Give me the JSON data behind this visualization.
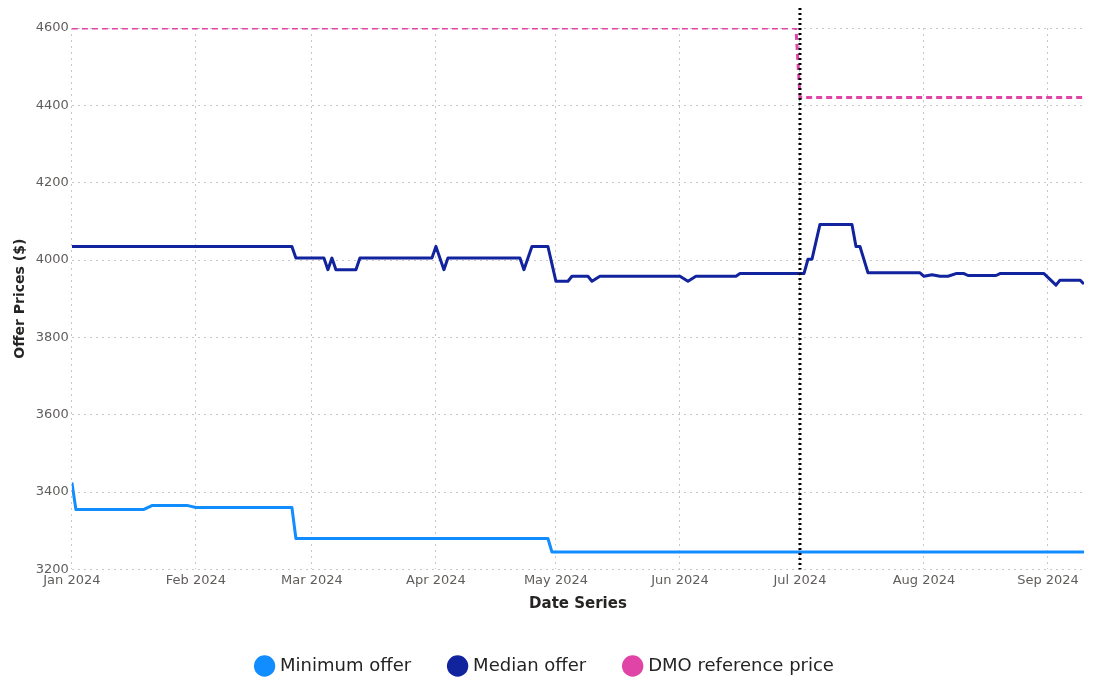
{
  "chart_data": {
    "type": "line",
    "xlabel": "Date Series",
    "ylabel": "Offer Prices ($)",
    "xlim": [
      "2024-01-01",
      "2024-09-10"
    ],
    "xticks": [
      {
        "value": "2024-01-01",
        "label": "Jan 2024"
      },
      {
        "value": "2024-02-01",
        "label": "Feb 2024"
      },
      {
        "value": "2024-03-01",
        "label": "Mar 2024"
      },
      {
        "value": "2024-04-01",
        "label": "Apr 2024"
      },
      {
        "value": "2024-05-01",
        "label": "May 2024"
      },
      {
        "value": "2024-06-01",
        "label": "Jun 2024"
      },
      {
        "value": "2024-07-01",
        "label": "Jul 2024"
      },
      {
        "value": "2024-08-01",
        "label": "Aug 2024"
      },
      {
        "value": "2024-09-01",
        "label": "Sep 2024"
      }
    ],
    "ylim": [
      3200,
      4600
    ],
    "yticks": [
      3200,
      3400,
      3600,
      3800,
      4000,
      4200,
      4400,
      4600
    ],
    "grid": true,
    "legend": "bottom",
    "marker": "none",
    "series": [
      {
        "name": "Minimum offer",
        "color": "#118dff",
        "x": [
          "2024-01-01",
          "2024-01-02",
          "2024-01-19",
          "2024-01-21",
          "2024-01-30",
          "2024-02-01",
          "2024-02-25",
          "2024-02-26",
          "2024-04-29",
          "2024-04-30",
          "2024-09-10"
        ],
        "values": [
          3425,
          3355,
          3355,
          3365,
          3365,
          3360,
          3360,
          3280,
          3280,
          3245,
          3245
        ]
      },
      {
        "name": "Median offer",
        "color": "#12239e",
        "x": [
          "2024-01-01",
          "2024-02-25",
          "2024-02-26",
          "2024-03-04",
          "2024-03-05",
          "2024-03-06",
          "2024-03-07",
          "2024-03-12",
          "2024-03-13",
          "2024-03-31",
          "2024-04-01",
          "2024-04-03",
          "2024-04-04",
          "2024-04-22",
          "2024-04-23",
          "2024-04-25",
          "2024-04-29",
          "2024-05-01",
          "2024-05-04",
          "2024-05-05",
          "2024-05-09",
          "2024-05-10",
          "2024-05-12",
          "2024-06-01",
          "2024-06-03",
          "2024-06-05",
          "2024-06-15",
          "2024-06-16",
          "2024-06-30",
          "2024-07-02",
          "2024-07-03",
          "2024-07-04",
          "2024-07-06",
          "2024-07-14",
          "2024-07-15",
          "2024-07-16",
          "2024-07-18",
          "2024-07-31",
          "2024-08-01",
          "2024-08-03",
          "2024-08-05",
          "2024-08-07",
          "2024-08-09",
          "2024-08-11",
          "2024-08-12",
          "2024-08-19",
          "2024-08-20",
          "2024-08-31",
          "2024-09-03",
          "2024-09-04",
          "2024-09-09",
          "2024-09-10"
        ],
        "values": [
          4035,
          4035,
          4005,
          4005,
          3975,
          4005,
          3975,
          3975,
          4005,
          4005,
          4035,
          3975,
          4005,
          4005,
          3975,
          4035,
          4035,
          3945,
          3945,
          3958,
          3958,
          3945,
          3958,
          3958,
          3945,
          3958,
          3958,
          3965,
          3965,
          3965,
          4002,
          4002,
          4092,
          4092,
          4035,
          4035,
          3967,
          3967,
          3958,
          3962,
          3958,
          3958,
          3965,
          3965,
          3960,
          3960,
          3965,
          3965,
          3935,
          3948,
          3948,
          3938
        ]
      },
      {
        "name": "DMO reference price",
        "color": "#e044a7",
        "line_style": "dashed",
        "x": [
          "2024-01-01",
          "2024-06-30",
          "2024-07-01",
          "2024-09-10"
        ],
        "values": [
          4600,
          4600,
          4420,
          4420
        ]
      }
    ],
    "ref_lines": [
      {
        "axis": "x",
        "value": "2024-07-01",
        "color": "#000000",
        "line_style": "dotted"
      }
    ]
  }
}
